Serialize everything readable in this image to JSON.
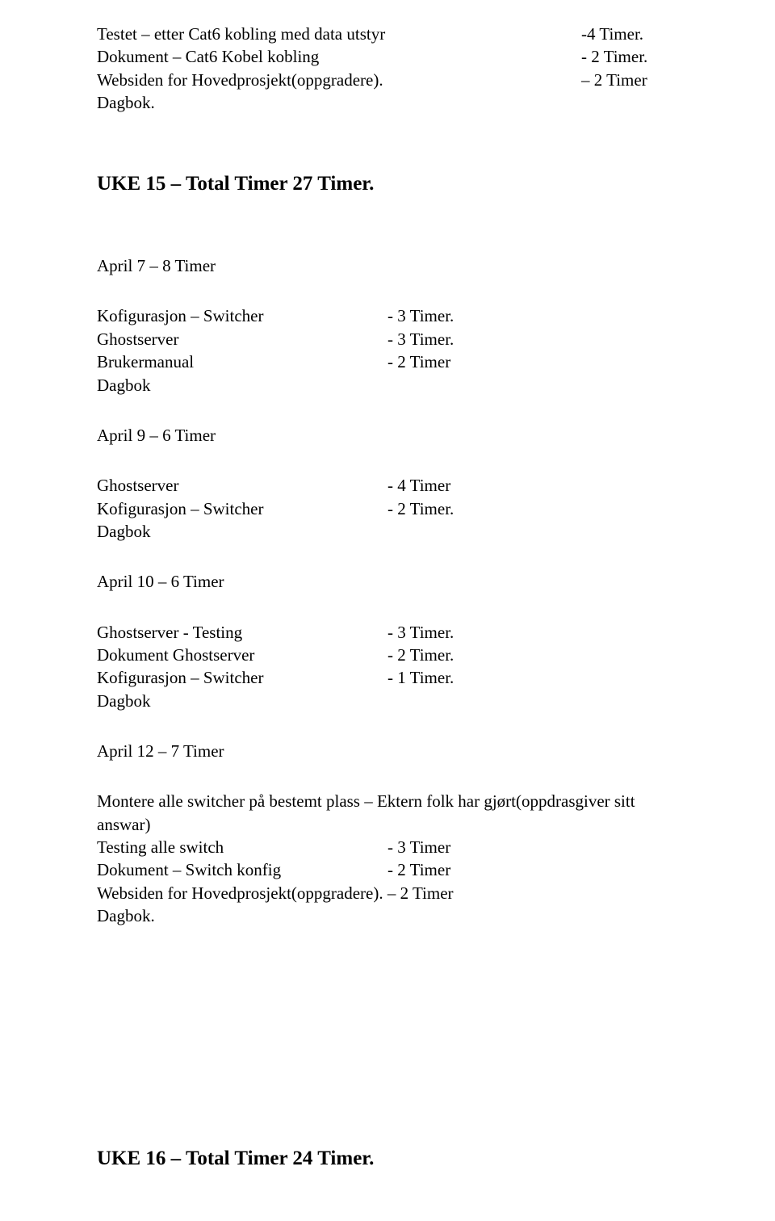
{
  "section1": {
    "rows": [
      {
        "left": "Testet – etter Cat6 kobling med data utstyr",
        "right": "-4 Timer."
      },
      {
        "left": "Dokument – Cat6 Kobel kobling",
        "right": "- 2 Timer."
      },
      {
        "left": "Websiden for Hovedprosjekt(oppgradere).",
        "right": "– 2 Timer"
      }
    ],
    "dagbok": "Dagbok."
  },
  "heading1": "UKE 15 – Total Timer    27 Timer.",
  "april7": {
    "title": "April 7 – 8 Timer",
    "rows": [
      {
        "c1": "Kofigurasjon – Switcher",
        "c2": "- 3 Timer."
      },
      {
        "c1": "Ghostserver",
        "c2": "- 3 Timer."
      },
      {
        "c1": "Brukermanual",
        "c2": "- 2 Timer"
      }
    ],
    "dagbok": "Dagbok"
  },
  "april9": {
    "title": "April 9 – 6 Timer",
    "rows": [
      {
        "c1": "Ghostserver",
        "c2": "- 4 Timer"
      },
      {
        "c1": "Kofigurasjon – Switcher",
        "c2": "- 2 Timer."
      }
    ],
    "dagbok": "Dagbok"
  },
  "april10": {
    "title": "April 10 – 6 Timer",
    "rows": [
      {
        "c1": "Ghostserver  - Testing",
        "c2": "- 3 Timer."
      },
      {
        "c1": "Dokument Ghostserver",
        "c2": "- 2 Timer."
      },
      {
        "c1": "Kofigurasjon – Switcher",
        "c2": "-  1 Timer."
      }
    ],
    "dagbok": "Dagbok"
  },
  "april12": {
    "title": "April 12 – 7 Timer",
    "line1": "Montere alle switcher på bestemt plass – Ektern folk har gjørt(oppdrasgiver sitt answar)",
    "rows": [
      {
        "c1": "Testing alle switch",
        "c2": "- 3 Timer"
      },
      {
        "c1": "Dokument – Switch konfig",
        "c2": "- 2 Timer"
      }
    ],
    "line2": "Websiden for Hovedprosjekt(oppgradere). – 2 Timer",
    "dagbok": "Dagbok."
  },
  "heading2": "UKE 16 – Total Timer    24 Timer."
}
